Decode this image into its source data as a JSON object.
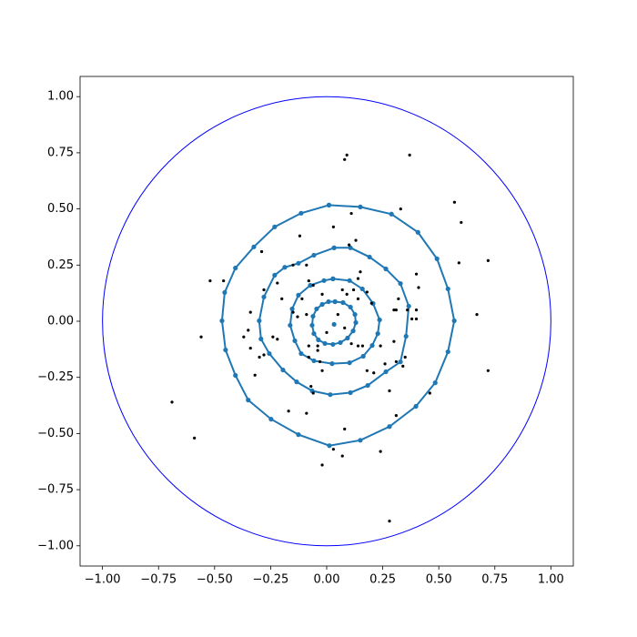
{
  "chart_data": {
    "type": "scatter",
    "xlim": [
      -1.1,
      1.1
    ],
    "ylim": [
      -1.09,
      1.09
    ],
    "xticks": [
      {
        "value": -1,
        "label": "−1.00"
      },
      {
        "value": -0.75,
        "label": "−0.75"
      },
      {
        "value": -0.5,
        "label": "−0.50"
      },
      {
        "value": -0.25,
        "label": "−0.25"
      },
      {
        "value": 0,
        "label": "0.00"
      },
      {
        "value": 0.25,
        "label": "0.25"
      },
      {
        "value": 0.5,
        "label": "0.50"
      },
      {
        "value": 0.75,
        "label": "0.75"
      },
      {
        "value": 1,
        "label": "1.00"
      }
    ],
    "yticks": [
      {
        "value": -1,
        "label": "−1.00"
      },
      {
        "value": -0.75,
        "label": "−0.75"
      },
      {
        "value": -0.5,
        "label": "−0.50"
      },
      {
        "value": -0.25,
        "label": "−0.25"
      },
      {
        "value": 0,
        "label": "0.00"
      },
      {
        "value": 0.25,
        "label": "0.25"
      },
      {
        "value": 0.5,
        "label": "0.50"
      },
      {
        "value": 0.75,
        "label": "0.75"
      },
      {
        "value": 1,
        "label": "1.00"
      }
    ],
    "reference_circle": {
      "center": [
        0,
        0
      ],
      "radius": 1,
      "color": "#0000ff"
    },
    "series": [
      {
        "style": "line-markers",
        "color": "#1f77b4",
        "x": [
          0.01,
          0.15,
          0.289,
          0.407,
          0.492,
          0.541,
          0.569,
          0.541,
          0.484,
          0.398,
          0.28,
          0.15,
          0.012,
          -0.126,
          -0.248,
          -0.35,
          -0.407,
          -0.451,
          -0.467,
          -0.455,
          -0.407,
          -0.325,
          -0.232,
          -0.114,
          0.01
        ],
        "y": [
          0.517,
          0.509,
          0.477,
          0.396,
          0.278,
          0.144,
          0.002,
          -0.136,
          -0.274,
          -0.379,
          -0.469,
          -0.53,
          -0.554,
          -0.505,
          -0.436,
          -0.351,
          -0.241,
          -0.128,
          0.002,
          0.128,
          0.237,
          0.331,
          0.42,
          0.481,
          0.517
        ]
      },
      {
        "style": "line-markers",
        "color": "#1f77b4",
        "x": [
          0.033,
          0.106,
          0.191,
          0.264,
          0.329,
          0.366,
          0.354,
          0.329,
          0.264,
          0.183,
          0.106,
          0.016,
          -0.065,
          -0.134,
          -0.195,
          -0.256,
          -0.293,
          -0.301,
          -0.28,
          -0.232,
          -0.187,
          -0.126,
          -0.057,
          0.033
        ],
        "y": [
          0.327,
          0.327,
          0.286,
          0.233,
          0.168,
          0.067,
          -0.067,
          -0.181,
          -0.225,
          -0.286,
          -0.318,
          -0.327,
          -0.31,
          -0.27,
          -0.217,
          -0.144,
          -0.079,
          0.002,
          0.108,
          0.205,
          0.24,
          0.258,
          0.294,
          0.327
        ]
      },
      {
        "style": "line-markers",
        "color": "#1f77b4",
        "x": [
          0.028,
          0.102,
          0.159,
          0.207,
          0.236,
          0.228,
          0.203,
          0.163,
          0.102,
          0.024,
          -0.057,
          -0.114,
          -0.142,
          -0.163,
          -0.154,
          -0.126,
          -0.073,
          -0.012,
          0.028
        ],
        "y": [
          0.189,
          0.181,
          0.144,
          0.079,
          0.006,
          -0.055,
          -0.108,
          -0.156,
          -0.185,
          -0.189,
          -0.176,
          -0.144,
          -0.087,
          -0.018,
          0.055,
          0.116,
          0.16,
          0.181,
          0.189
        ]
      },
      {
        "style": "line-markers",
        "color": "#1f77b4",
        "x": [
          0.037,
          0.073,
          0.106,
          0.126,
          0.13,
          0.118,
          0.093,
          0.061,
          0.028,
          -0.008,
          -0.037,
          -0.057,
          -0.065,
          -0.061,
          -0.045,
          -0.02,
          0.008,
          0.037
        ],
        "y": [
          0.087,
          0.083,
          0.063,
          0.03,
          -0.006,
          -0.043,
          -0.075,
          -0.095,
          -0.103,
          -0.099,
          -0.083,
          -0.055,
          -0.018,
          0.022,
          0.055,
          0.075,
          0.087,
          0.087
        ]
      },
      {
        "style": "line-markers",
        "color": "#1f77b4",
        "x": [
          0.033
        ],
        "y": [
          -0.014
        ]
      },
      {
        "style": "markers",
        "color": "#000000",
        "x": [
          0.09,
          0.08,
          0.37,
          0.57,
          0.6,
          0.33,
          0.11,
          0.03,
          0.1,
          0.13,
          -0.29,
          -0.12,
          -0.52,
          -0.46,
          -0.15,
          -0.09,
          -0.22,
          -0.28,
          -0.2,
          -0.34,
          -0.35,
          -0.37,
          -0.56,
          -0.34,
          -0.28,
          -0.24,
          -0.22,
          -0.08,
          -0.06,
          -0.11,
          -0.15,
          -0.13,
          -0.02,
          0.07,
          0.09,
          0.12,
          0.14,
          0.15,
          0.14,
          0.18,
          0.2,
          0.32,
          0.4,
          0.41,
          0.31,
          0.3,
          0.38,
          0.4,
          0.4,
          0.36,
          0.67,
          0.72,
          0.59,
          0.0,
          -0.04,
          -0.04,
          -0.08,
          -0.03,
          -0.02,
          -0.07,
          -0.06,
          -0.09,
          -0.17,
          -0.3,
          -0.32,
          0.18,
          0.21,
          0.24,
          0.26,
          0.28,
          0.31,
          0.35,
          0.34,
          0.46,
          0.72,
          0.3,
          0.08,
          0.03,
          0.07,
          -0.02,
          0.24,
          0.31,
          0.28,
          -0.59,
          -0.69,
          -0.08,
          -0.09,
          0.05,
          0.08,
          0.14,
          0.11,
          0.16
        ],
        "y": [
          0.74,
          0.72,
          0.74,
          0.53,
          0.44,
          0.5,
          0.48,
          0.42,
          0.34,
          0.36,
          0.31,
          0.38,
          0.18,
          0.18,
          0.25,
          0.25,
          0.17,
          0.14,
          0.1,
          0.04,
          -0.04,
          -0.07,
          -0.07,
          -0.12,
          -0.15,
          -0.07,
          -0.08,
          0.18,
          0.16,
          0.1,
          0.04,
          0.02,
          0.12,
          0.14,
          0.12,
          0.14,
          0.19,
          0.22,
          0.1,
          0.13,
          0.08,
          0.1,
          0.21,
          0.15,
          0.05,
          0.05,
          0.01,
          0.01,
          0.05,
          0.05,
          0.03,
          0.27,
          0.26,
          -0.05,
          -0.11,
          -0.13,
          -0.16,
          -0.18,
          -0.22,
          -0.29,
          -0.32,
          -0.41,
          -0.4,
          -0.16,
          -0.24,
          -0.22,
          -0.23,
          -0.11,
          -0.19,
          -0.31,
          -0.18,
          -0.16,
          -0.2,
          -0.32,
          -0.22,
          -0.09,
          -0.48,
          -0.57,
          -0.6,
          -0.64,
          -0.58,
          -0.42,
          -0.89,
          -0.52,
          -0.36,
          -0.11,
          0.03,
          0.03,
          -0.03,
          -0.11,
          -0.1,
          -0.11
        ]
      }
    ]
  }
}
